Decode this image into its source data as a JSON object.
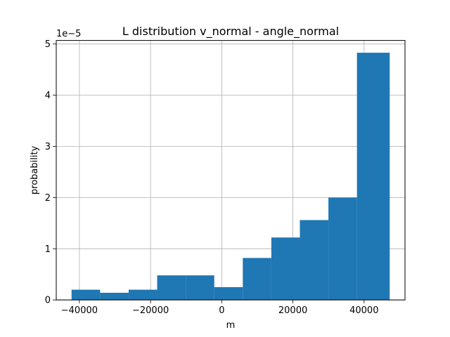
{
  "chart_data": {
    "type": "bar",
    "title": "L distribution v_normal - angle_normal",
    "xlabel": "m",
    "ylabel": "probability",
    "y_offset_label": "1e−5",
    "grid": true,
    "color": "#1f77b4",
    "xlim": [
      -46500,
      51500
    ],
    "ylim": [
      0,
      5.07
    ],
    "x_ticks": [
      {
        "value": -40000,
        "label": "−40000"
      },
      {
        "value": -20000,
        "label": "−20000"
      },
      {
        "value": 0,
        "label": "0"
      },
      {
        "value": 20000,
        "label": "20000"
      },
      {
        "value": 40000,
        "label": "40000"
      }
    ],
    "y_ticks": [
      {
        "value": 0,
        "label": "0"
      },
      {
        "value": 1,
        "label": "1"
      },
      {
        "value": 2,
        "label": "2"
      },
      {
        "value": 3,
        "label": "3"
      },
      {
        "value": 4,
        "label": "4"
      },
      {
        "value": 5,
        "label": "5"
      }
    ],
    "bins": [
      {
        "x0": -42200,
        "x1": -34180,
        "value": 0.2
      },
      {
        "x0": -34180,
        "x1": -26160,
        "value": 0.14
      },
      {
        "x0": -26160,
        "x1": -18140,
        "value": 0.2
      },
      {
        "x0": -18140,
        "x1": -10120,
        "value": 0.48
      },
      {
        "x0": -10120,
        "x1": -2100,
        "value": 0.48
      },
      {
        "x0": -2100,
        "x1": 5920,
        "value": 0.25
      },
      {
        "x0": 5920,
        "x1": 13940,
        "value": 0.82
      },
      {
        "x0": 13940,
        "x1": 21960,
        "value": 1.22
      },
      {
        "x0": 21960,
        "x1": 29980,
        "value": 1.56
      },
      {
        "x0": 29980,
        "x1": 38000,
        "value": 2.0
      },
      {
        "x0": 38000,
        "x1": 47200,
        "value": 4.83
      }
    ]
  }
}
